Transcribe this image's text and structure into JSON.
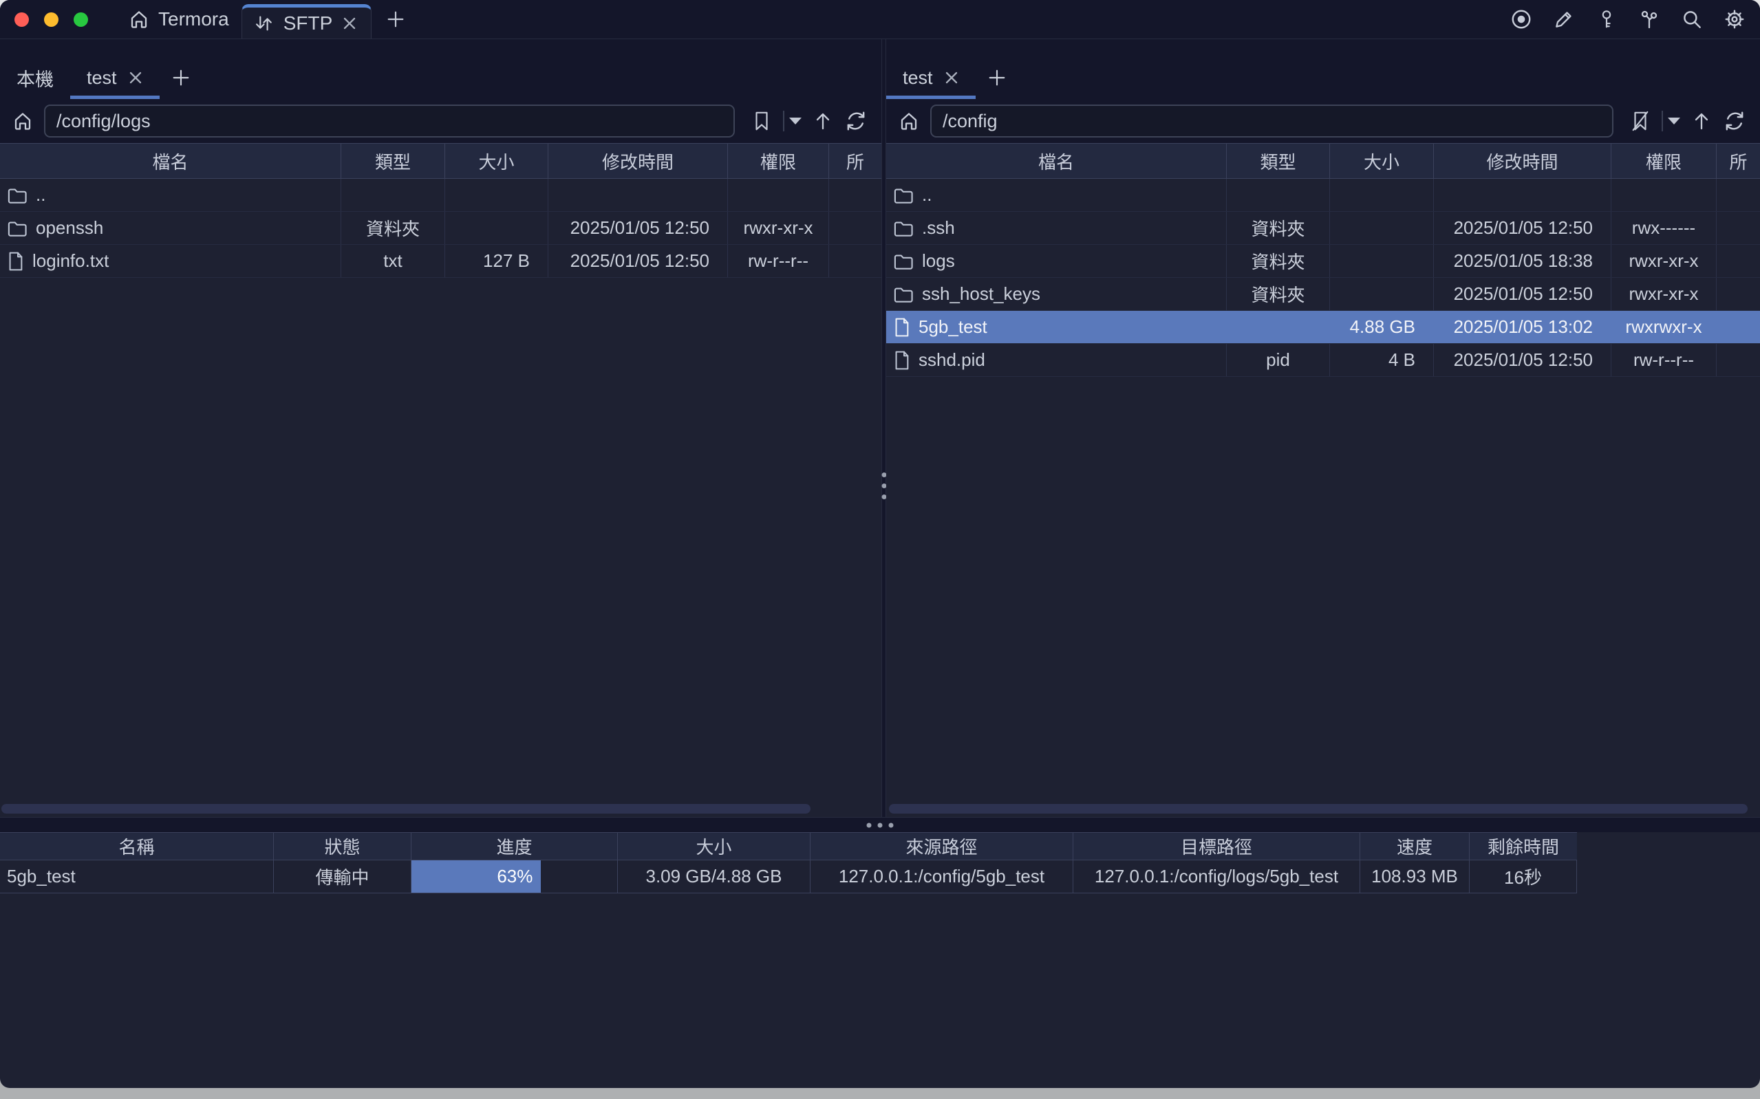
{
  "titlebar": {
    "app_tab": {
      "label": "Termora"
    },
    "sftp_tab": {
      "label": "SFTP"
    },
    "toolbar_icons": [
      "record",
      "edit",
      "key",
      "keychain",
      "search",
      "settings"
    ]
  },
  "left_pane": {
    "tabs": [
      {
        "label": "本機",
        "active": false,
        "closable": false
      },
      {
        "label": "test",
        "active": true,
        "closable": true
      }
    ],
    "path": "/config/logs",
    "bookmark_icon": "bookmark",
    "columns": [
      "檔名",
      "類型",
      "大小",
      "修改時間",
      "權限",
      "所"
    ],
    "files": [
      {
        "name": "..",
        "icon": "folder",
        "type": "",
        "size": "",
        "modified": "",
        "permissions": "",
        "selected": false
      },
      {
        "name": "openssh",
        "icon": "folder",
        "type": "資料夾",
        "size": "",
        "modified": "2025/01/05 12:50",
        "permissions": "rwxr-xr-x",
        "selected": false
      },
      {
        "name": "loginfo.txt",
        "icon": "file",
        "type": "txt",
        "size": "127 B",
        "modified": "2025/01/05 12:50",
        "permissions": "rw-r--r--",
        "selected": false
      }
    ]
  },
  "right_pane": {
    "tabs": [
      {
        "label": "test",
        "active": true,
        "closable": true
      }
    ],
    "path": "/config",
    "bookmark_icon": "bookmark-slash",
    "columns": [
      "檔名",
      "類型",
      "大小",
      "修改時間",
      "權限",
      "所"
    ],
    "files": [
      {
        "name": "..",
        "icon": "folder",
        "type": "",
        "size": "",
        "modified": "",
        "permissions": "",
        "selected": false
      },
      {
        "name": ".ssh",
        "icon": "folder",
        "type": "資料夾",
        "size": "",
        "modified": "2025/01/05 12:50",
        "permissions": "rwx------",
        "selected": false
      },
      {
        "name": "logs",
        "icon": "folder",
        "type": "資料夾",
        "size": "",
        "modified": "2025/01/05 18:38",
        "permissions": "rwxr-xr-x",
        "selected": false
      },
      {
        "name": "ssh_host_keys",
        "icon": "folder",
        "type": "資料夾",
        "size": "",
        "modified": "2025/01/05 12:50",
        "permissions": "rwxr-xr-x",
        "selected": false
      },
      {
        "name": "5gb_test",
        "icon": "file",
        "type": "",
        "size": "4.88 GB",
        "modified": "2025/01/05 13:02",
        "permissions": "rwxrwxr-x",
        "selected": true
      },
      {
        "name": "sshd.pid",
        "icon": "file",
        "type": "pid",
        "size": "4 B",
        "modified": "2025/01/05 12:50",
        "permissions": "rw-r--r--",
        "selected": false
      }
    ]
  },
  "transfers": {
    "columns": [
      "名稱",
      "狀態",
      "進度",
      "大小",
      "來源路徑",
      "目標路徑",
      "速度",
      "剩餘時間"
    ],
    "items": [
      {
        "name": "5gb_test",
        "status": "傳輸中",
        "progress_label": "63%",
        "progress_percent": 63,
        "size": "3.09 GB/4.88 GB",
        "source": "127.0.0.1:/config/5gb_test",
        "target": "127.0.0.1:/config/logs/5gb_test",
        "speed": "108.93 MB",
        "remaining": "16秒"
      }
    ]
  },
  "colors": {
    "accent_tab_top": "#5584d1",
    "tab_underline": "#5378c2",
    "selection": "#5a79bb",
    "progress_fill": "#5a79bb",
    "traffic_close": "#ff5f57",
    "traffic_minimize": "#febc2e",
    "traffic_zoom": "#28c840"
  }
}
